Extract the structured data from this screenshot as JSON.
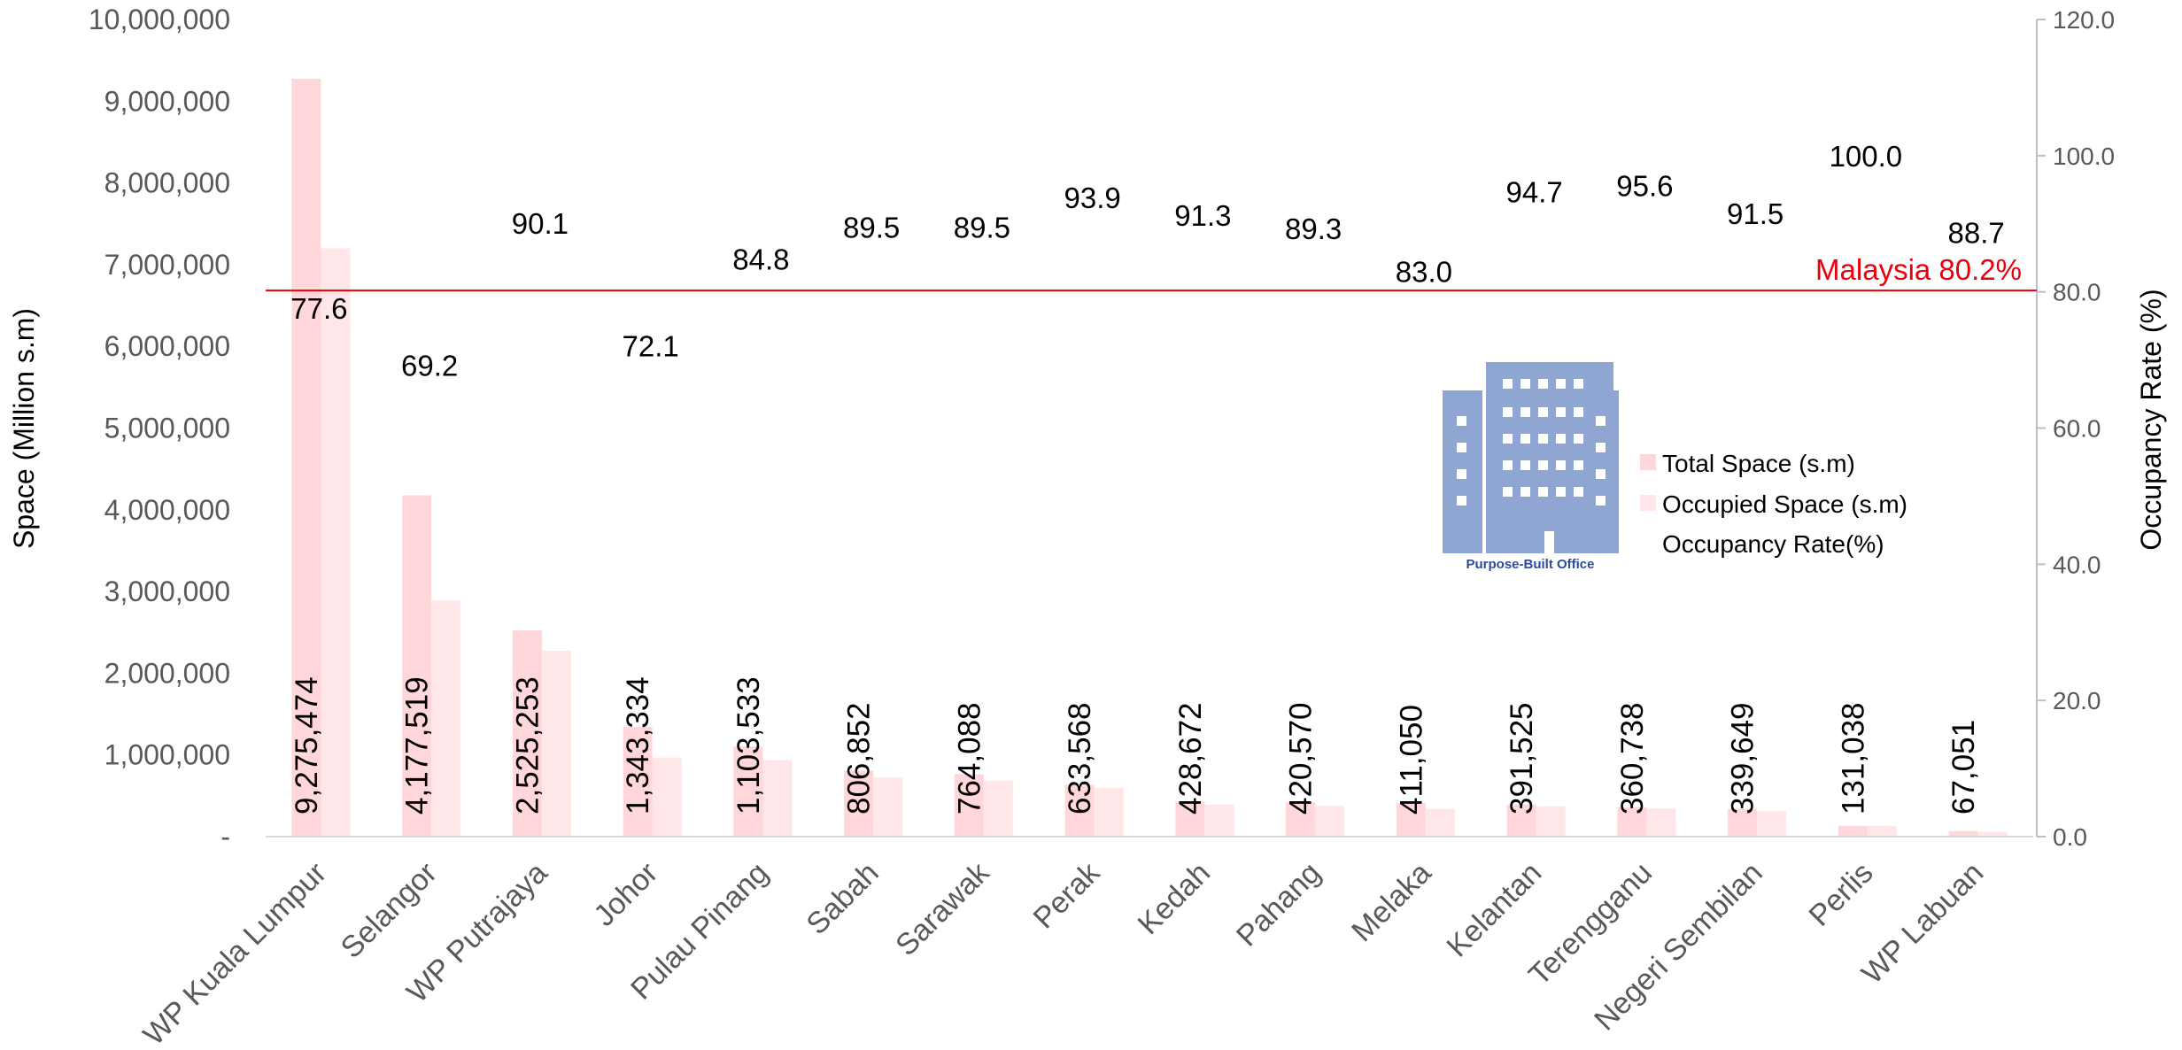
{
  "chart_data": {
    "type": "bar",
    "categories": [
      "WP Kuala Lumpur",
      "Selangor",
      "WP Putrajaya",
      "Johor",
      "Pulau Pinang",
      "Sabah",
      "Sarawak",
      "Perak",
      "Kedah",
      "Pahang",
      "Melaka",
      "Kelantan",
      "Terengganu",
      "Negeri Sembilan",
      "Perlis",
      "WP Labuan"
    ],
    "series": [
      {
        "name": "Total Space (s.m)",
        "axis": "left",
        "color": "#FFD6D9",
        "values": [
          9275474,
          4177519,
          2525253,
          1343334,
          1103533,
          806852,
          764088,
          633568,
          428672,
          420570,
          411050,
          391525,
          360738,
          339649,
          131038,
          67051
        ],
        "labels": [
          "9,275,474",
          "4,177,519",
          "2,525,253",
          "1,343,334",
          "1,103,533",
          "806,852",
          "764,088",
          "633,568",
          "428,672",
          "420,570",
          "411,050",
          "391,525",
          "360,738",
          "339,649",
          "131,038",
          "67,051"
        ]
      },
      {
        "name": "Occupied Space (s.m)",
        "axis": "left",
        "color": "#FFE6E8",
        "values": [
          7200000,
          2890000,
          2275000,
          968000,
          936000,
          722000,
          684000,
          595000,
          391000,
          375000,
          341000,
          371000,
          345000,
          311000,
          131000,
          59500
        ]
      },
      {
        "name": "Occupancy Rate(%)",
        "axis": "right",
        "values": [
          77.6,
          69.2,
          90.1,
          72.1,
          84.8,
          89.5,
          89.5,
          93.9,
          91.3,
          89.3,
          83.0,
          94.7,
          95.6,
          91.5,
          100.0,
          88.7
        ],
        "labels": [
          "77.6",
          "69.2",
          "90.1",
          "72.1",
          "84.8",
          "89.5",
          "89.5",
          "93.9",
          "91.3",
          "89.3",
          "83.0",
          "94.7",
          "95.6",
          "91.5",
          "100.0",
          "88.7"
        ]
      }
    ],
    "ylabel": "Space (Million s.m)",
    "ylim": [
      0,
      10000000
    ],
    "yticks": [
      0,
      1000000,
      2000000,
      3000000,
      4000000,
      5000000,
      6000000,
      7000000,
      8000000,
      9000000,
      10000000
    ],
    "ytick_labels": [
      "-",
      "1,000,000",
      "2,000,000",
      "3,000,000",
      "4,000,000",
      "5,000,000",
      "6,000,000",
      "7,000,000",
      "8,000,000",
      "9,000,000",
      "10,000,000"
    ],
    "y2label": "Occupancy Rate (%)",
    "y2lim": [
      0,
      120
    ],
    "y2ticks": [
      0,
      20,
      40,
      60,
      80,
      100,
      120
    ],
    "y2tick_labels": [
      "0.0",
      "20.0",
      "40.0",
      "60.0",
      "80.0",
      "100.0",
      "120.0"
    ],
    "reference_line": {
      "value": 80.2,
      "axis": "right",
      "label": "Malaysia 80.2%",
      "color": "#E8000B"
    },
    "legend": {
      "placement": "center-right",
      "entries": [
        "Total Space (s.m)",
        "Occupied Space (s.m)",
        "Occupancy Rate(%)"
      ]
    },
    "logo": {
      "caption": "Purpose-Built Office",
      "icon": "office-building-icon",
      "color": "#8FA6D2"
    },
    "grid": false
  }
}
